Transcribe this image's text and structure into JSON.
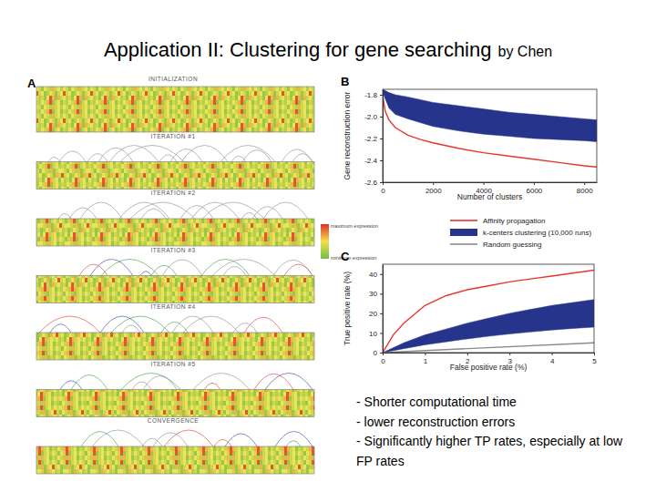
{
  "slide": {
    "title": "Application II: Clustering for gene searching",
    "byline": "by Chen",
    "bullets": [
      "- Shorter computational time",
      "- lower reconstruction errors",
      "- Significantly higher TP rates, especially at low FP rates"
    ]
  },
  "panel_a": {
    "label": "A",
    "steps": [
      "INITIALIZATION",
      "ITERATION #1",
      "ITERATION #2",
      "ITERATION #3",
      "ITERATION #4",
      "ITERATION #5",
      "CONVERGENCE"
    ],
    "color_scale": {
      "max_label": "maximum expression",
      "min_label": "minimum expression"
    }
  },
  "chart_data": [
    {
      "type": "line",
      "panel_label": "B",
      "x_label": "Number of clusters",
      "y_label": "Gene reconstruction error",
      "xlim": [
        0,
        8500
      ],
      "xticks": [
        0,
        2000,
        4000,
        6000,
        8000
      ],
      "ylim": [
        -2.6,
        -1.75
      ],
      "yticks": [
        -2.6,
        -2.4,
        -2.2,
        {
          "value": -2.0,
          "label": "-2.0"
        },
        -1.8
      ],
      "series": [
        {
          "type": "line",
          "color": "#e8352e",
          "x": [
            0,
            100,
            250,
            500,
            1000,
            1500,
            2000,
            3000,
            4000,
            5000,
            6000,
            7000,
            8000,
            8500
          ],
          "values": [
            -1.8,
            -1.95,
            -2.03,
            -2.1,
            -2.17,
            -2.21,
            -2.24,
            -2.29,
            -2.33,
            -2.36,
            -2.39,
            -2.42,
            -2.45,
            -2.46
          ]
        },
        {
          "type": "area",
          "color": "#26348b",
          "x": [
            0,
            250,
            500,
            1000,
            2000,
            3000,
            4000,
            5000,
            6000,
            7000,
            8000,
            8500
          ],
          "values": [
            -1.75,
            -1.78,
            -1.8,
            -1.82,
            -1.87,
            -1.9,
            -1.93,
            -1.96,
            -1.98,
            -2.0,
            -2.02,
            -2.03
          ],
          "lower": [
            -1.78,
            -1.92,
            -1.98,
            -2.02,
            -2.09,
            -2.13,
            -2.16,
            -2.18,
            -2.2,
            -2.21,
            -2.22,
            -2.23
          ]
        }
      ]
    },
    {
      "type": "line",
      "panel_label": "C",
      "x_label": "False positive rate (%)",
      "y_label": "True positive rate (%)",
      "xlim": [
        0,
        5
      ],
      "xticks": [
        0,
        1,
        2,
        3,
        4,
        5
      ],
      "ylim": [
        0,
        45
      ],
      "yticks": [
        0,
        10,
        20,
        30,
        40
      ],
      "legend": "top",
      "series": [
        {
          "name": "Affinity propagation",
          "type": "line",
          "color": "#e8352e",
          "x": [
            0,
            0.25,
            0.5,
            1,
            1.5,
            2,
            2.5,
            3,
            3.5,
            4,
            4.5,
            5
          ],
          "values": [
            0,
            9,
            15,
            24,
            29,
            32,
            34,
            36,
            37.5,
            39,
            40.5,
            42
          ]
        },
        {
          "name": "k-centers clustering (10,000 runs)",
          "type": "area",
          "color": "#26348b",
          "x": [
            0,
            0.5,
            1,
            1.5,
            2,
            2.5,
            3,
            3.5,
            4,
            4.5,
            5
          ],
          "values": [
            0,
            5,
            9,
            12,
            15,
            17.5,
            20,
            22,
            24,
            25.5,
            27
          ],
          "lower": [
            0,
            2,
            4,
            5.5,
            7,
            8.3,
            9.5,
            10.5,
            11.5,
            12.3,
            13
          ]
        },
        {
          "name": "Random guessing",
          "type": "line",
          "color": "#8a8a8a",
          "x": [
            0,
            5
          ],
          "values": [
            0,
            5
          ]
        }
      ]
    }
  ]
}
